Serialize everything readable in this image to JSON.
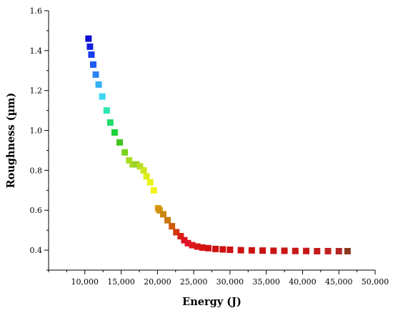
{
  "chart_data": {
    "type": "scatter",
    "title": "",
    "xlabel": "Energy (J)",
    "ylabel": "Roughness (µm)",
    "xlim": [
      5000,
      50000
    ],
    "ylim": [
      0.3,
      1.6
    ],
    "x_ticks": [
      10000,
      15000,
      20000,
      25000,
      30000,
      35000,
      40000,
      45000,
      50000
    ],
    "x_tick_labels": [
      "10,000",
      "15,000",
      "20,000",
      "25,000",
      "30,000",
      "35,000",
      "40,000",
      "45,000",
      "50,000"
    ],
    "y_ticks": [
      0.4,
      0.6,
      0.8,
      1.0,
      1.2,
      1.4,
      1.6
    ],
    "y_tick_labels": [
      "0.4",
      "0.6",
      "0.8",
      "1.0",
      "1.2",
      "1.4",
      "1.6"
    ],
    "grid": false,
    "legend": "none",
    "marker": "square",
    "color_scale": "rainbow (blue to red, ordered by energy)",
    "series": [
      {
        "x": [
          10500,
          10700,
          10900,
          11150,
          11500,
          11900,
          12400,
          13000,
          13500,
          14100,
          14800,
          15500,
          16100,
          16600,
          17100,
          17600,
          18100,
          18500,
          19000,
          19500,
          20100,
          20300,
          20800,
          21400,
          22000,
          22600,
          23200,
          23700,
          24200,
          24800,
          25500,
          26200,
          27000,
          28000,
          29000,
          30000,
          31500,
          33000,
          34500,
          36000,
          37500,
          39000,
          40500,
          42000,
          43500,
          45000,
          46200
        ],
        "y": [
          1.46,
          1.42,
          1.38,
          1.33,
          1.28,
          1.23,
          1.17,
          1.1,
          1.04,
          0.99,
          0.94,
          0.89,
          0.85,
          0.83,
          0.83,
          0.82,
          0.8,
          0.77,
          0.74,
          0.7,
          0.61,
          0.6,
          0.58,
          0.55,
          0.52,
          0.49,
          0.47,
          0.45,
          0.435,
          0.425,
          0.418,
          0.413,
          0.41,
          0.406,
          0.404,
          0.402,
          0.4,
          0.399,
          0.398,
          0.397,
          0.397,
          0.396,
          0.396,
          0.395,
          0.395,
          0.395,
          0.395
        ],
        "colors": [
          "#0d0dd6",
          "#1220e0",
          "#1a3cec",
          "#1f5af2",
          "#2b83f5",
          "#36b0f5",
          "#3fd6f2",
          "#2ee6b0",
          "#1fdc6a",
          "#1dd038",
          "#45c31f",
          "#78d21e",
          "#a8df20",
          "#a6d825",
          "#9ccf2a",
          "#b6dc22",
          "#cce61e",
          "#dcef1c",
          "#e9f21a",
          "#f2f21c",
          "#d99a12",
          "#d2920f",
          "#c9860e",
          "#c7790b",
          "#cf5a0a",
          "#d2360a",
          "#d81d12",
          "#df1020",
          "#e3102a",
          "#df1520",
          "#d91616",
          "#d51313",
          "#d21212",
          "#d01111",
          "#cf1111",
          "#cd1111",
          "#cc1212",
          "#cb1212",
          "#ca1313",
          "#c91414",
          "#c81515",
          "#c71616",
          "#c61818",
          "#c41a1a",
          "#bf2020",
          "#b42626",
          "#8a3a20"
        ]
      }
    ]
  }
}
